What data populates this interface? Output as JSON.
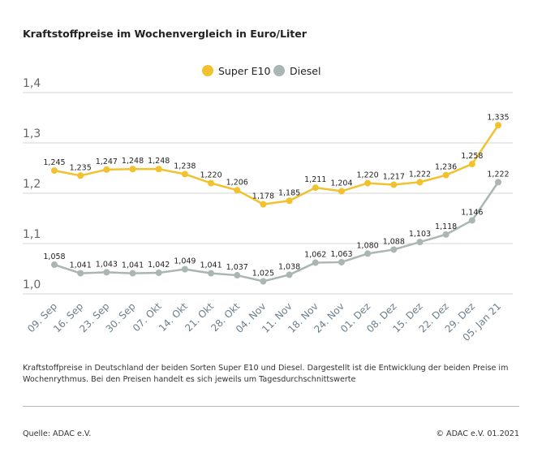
{
  "chart_data": {
    "type": "line",
    "title": "Kraftstoffpreise im Wochenvergleich in Euro/Liter",
    "categories": [
      "09. Sep",
      "16. Sep",
      "23. Sep",
      "30. Sep",
      "07. Okt",
      "14. Okt",
      "21. Okt",
      "28. Okt",
      "04. Nov",
      "11. Nov",
      "18. Nov",
      "24. Nov",
      "01. Dez",
      "08. Dez",
      "15. Dez",
      "22. Dez",
      "29. Dez",
      "05. Jan 21"
    ],
    "series": [
      {
        "name": "Super E10",
        "color": "#f2c12e",
        "values": [
          1.245,
          1.235,
          1.247,
          1.248,
          1.248,
          1.238,
          1.22,
          1.206,
          1.178,
          1.185,
          1.211,
          1.204,
          1.22,
          1.217,
          1.222,
          1.236,
          1.258,
          1.335
        ]
      },
      {
        "name": "Diesel",
        "color": "#aab6b3",
        "values": [
          1.058,
          1.041,
          1.043,
          1.041,
          1.042,
          1.049,
          1.041,
          1.037,
          1.025,
          1.038,
          1.062,
          1.063,
          1.08,
          1.088,
          1.103,
          1.118,
          1.146,
          1.222
        ]
      }
    ],
    "ylim": [
      1.0,
      1.4
    ],
    "yticks": [
      "1,0",
      "1,1",
      "1,2",
      "1,3",
      "1,4"
    ],
    "grid": true,
    "legend": "top-center",
    "xlabel": "",
    "ylabel": ""
  },
  "footnote": "Kraftstoffpreise in Deutschland der beiden Sorten Super E10 und Diesel. Dargestellt ist die Entwicklung der beiden Preise im Wochenrythmus. Bei den Preisen handelt es sich jeweils um Tagesdurchschnittswerte",
  "source": "Quelle: ADAC e.V.",
  "copyright": "© ADAC e.V. 01.2021"
}
